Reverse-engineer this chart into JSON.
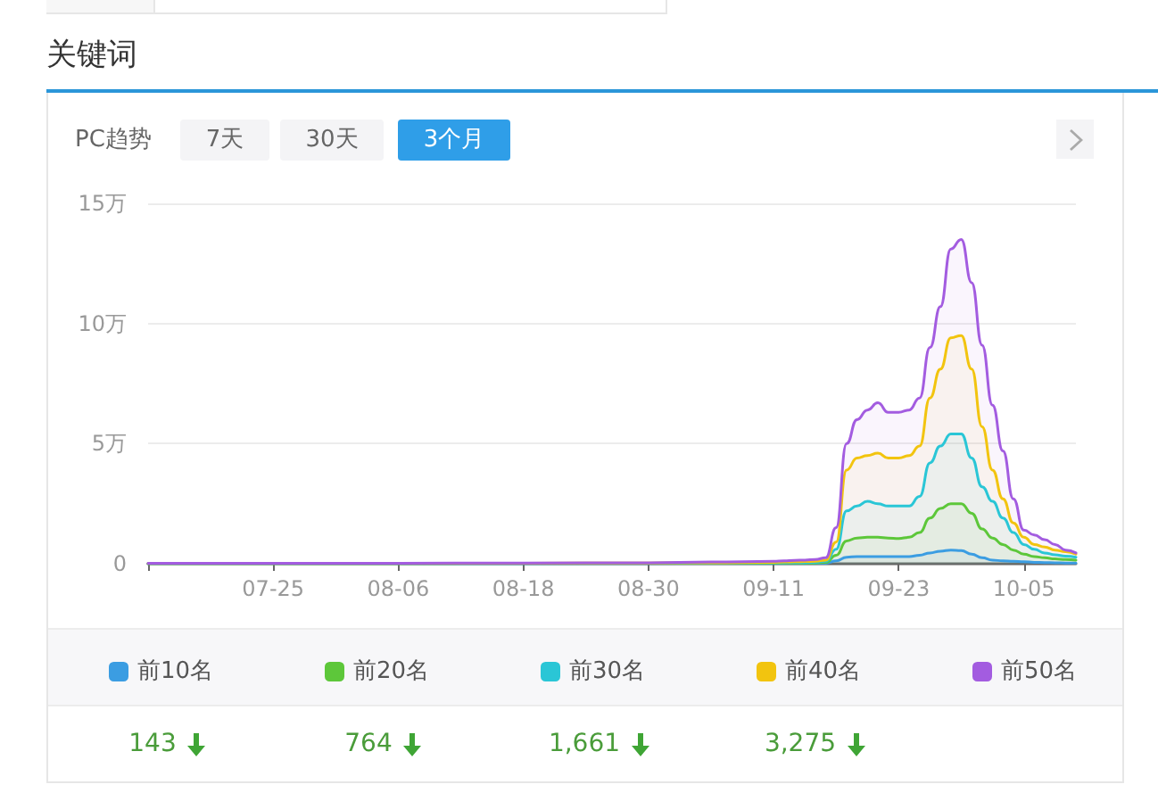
{
  "chart_data": {
    "type": "area",
    "title": "关键词",
    "subtitle": "PC趋势",
    "annotations": [
      "7天",
      "30天",
      "3个月",
      "143",
      "764",
      "1,661",
      "3,275"
    ],
    "x": [
      "--07-13",
      "--07-25",
      "--08-06",
      "--08-18",
      "--08-30",
      "--09-05",
      "--09-11",
      "--09-12",
      "--09-13",
      "--09-14",
      "--09-15",
      "--09-16",
      "--09-17",
      "--09-18",
      "--09-19",
      "--09-20",
      "--09-21",
      "--09-22",
      "--09-23",
      "--09-24",
      "--09-25",
      "--09-26",
      "--09-27",
      "--09-28",
      "--09-29",
      "--09-30",
      "--10-01",
      "--10-02",
      "--10-03",
      "--10-04",
      "--10-05",
      "--10-06",
      "--10-07",
      "--10-08",
      "--10-09",
      "--10-10"
    ],
    "series": [
      {
        "name": "前10名",
        "color": "#3b9de2",
        "values": [
          0,
          0,
          0,
          0,
          0,
          0.01,
          0.01,
          0.01,
          0.01,
          0.01,
          0.01,
          0.02,
          0.12,
          0.27,
          0.3,
          0.3,
          0.3,
          0.3,
          0.3,
          0.3,
          0.35,
          0.45,
          0.52,
          0.57,
          0.55,
          0.4,
          0.25,
          0.15,
          0.12,
          0.1,
          0.08,
          0.06,
          0.05,
          0.04,
          0.03,
          0.03
        ]
      },
      {
        "name": "前20名",
        "color": "#5dc73a",
        "values": [
          0,
          0,
          0,
          0.01,
          0.01,
          0.02,
          0.02,
          0.02,
          0.03,
          0.03,
          0.03,
          0.06,
          0.35,
          0.95,
          1.07,
          1.1,
          1.1,
          1.07,
          1.05,
          1.1,
          1.3,
          1.9,
          2.3,
          2.5,
          2.5,
          2.1,
          1.45,
          1.07,
          0.8,
          0.57,
          0.4,
          0.3,
          0.25,
          0.2,
          0.18,
          0.15
        ]
      },
      {
        "name": "前30名",
        "color": "#2ac6d6",
        "values": [
          0.01,
          0.01,
          0.01,
          0.01,
          0.02,
          0.03,
          0.04,
          0.04,
          0.05,
          0.05,
          0.06,
          0.1,
          0.6,
          2.2,
          2.4,
          2.6,
          2.5,
          2.4,
          2.4,
          2.4,
          2.8,
          4.2,
          4.9,
          5.4,
          5.4,
          4.4,
          3.2,
          2.6,
          1.9,
          1.3,
          0.8,
          0.6,
          0.45,
          0.37,
          0.32,
          0.27
        ]
      },
      {
        "name": "前40名",
        "color": "#f2c40f",
        "values": [
          0.01,
          0.01,
          0.01,
          0.02,
          0.03,
          0.04,
          0.06,
          0.07,
          0.08,
          0.09,
          0.1,
          0.15,
          0.9,
          3.9,
          4.4,
          4.5,
          4.6,
          4.4,
          4.4,
          4.5,
          4.9,
          6.9,
          8.1,
          9.4,
          9.5,
          8.1,
          5.7,
          3.9,
          2.7,
          1.7,
          1.1,
          0.8,
          0.7,
          0.57,
          0.5,
          0.4
        ]
      },
      {
        "name": "前50名",
        "color": "#a35ce0",
        "values": [
          0.02,
          0.02,
          0.02,
          0.03,
          0.04,
          0.07,
          0.1,
          0.12,
          0.14,
          0.15,
          0.18,
          0.25,
          1.5,
          5,
          6,
          6.4,
          6.7,
          6.3,
          6.3,
          6.4,
          6.9,
          9,
          10.7,
          13.1,
          13.5,
          11.7,
          9.1,
          6.6,
          4.7,
          2.7,
          1.4,
          1.2,
          1,
          0.8,
          0.57,
          0.45
        ]
      }
    ],
    "xlim": [
      "--07-13",
      "--10-10"
    ],
    "xticks": [
      {
        "value": "--07-13",
        "label": null
      },
      {
        "value": "--07-25",
        "label": "07-25"
      },
      {
        "value": "--08-06",
        "label": "08-06"
      },
      {
        "value": "--08-18",
        "label": "08-18"
      },
      {
        "value": "--08-30",
        "label": "08-30"
      },
      {
        "value": "--09-11",
        "label": "09-11"
      },
      {
        "value": "--09-23",
        "label": "09-23"
      },
      {
        "value": "--10-05",
        "label": "10-05"
      }
    ],
    "ylim": [
      0,
      15
    ],
    "yticks": [
      0,
      {
        "value": 5,
        "label": "5万"
      },
      {
        "value": 10,
        "label": "10万"
      },
      {
        "value": 15,
        "label": "15万"
      }
    ],
    "grid": "y",
    "legend": "bottom",
    "marker": "none",
    "line_style": "solid"
  }
}
